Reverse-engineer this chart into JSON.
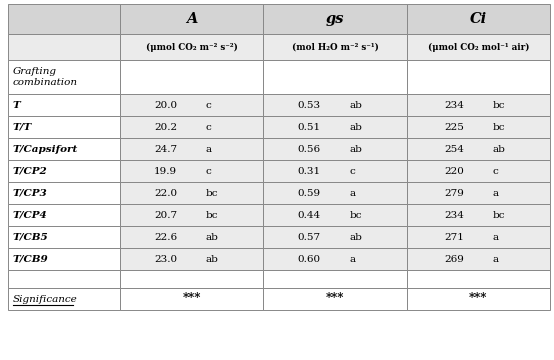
{
  "col_headers": [
    "A",
    "gs",
    "Ci"
  ],
  "col_units": [
    "(μmol CO₂ m⁻² s⁻²)",
    "(mol H₂O m⁻² s⁻¹)",
    "(μmol CO₂ mol⁻¹ air)"
  ],
  "row_label_header": "Grafting\ncombination",
  "rows": [
    {
      "label": "T",
      "A": "20.0",
      "A_sig": "c",
      "gs": "0.53",
      "gs_sig": "ab",
      "Ci": "234",
      "Ci_sig": "bc"
    },
    {
      "label": "T/T",
      "A": "20.2",
      "A_sig": "c",
      "gs": "0.51",
      "gs_sig": "ab",
      "Ci": "225",
      "Ci_sig": "bc"
    },
    {
      "label": "T/Capsifort",
      "A": "24.7",
      "A_sig": "a",
      "gs": "0.56",
      "gs_sig": "ab",
      "Ci": "254",
      "Ci_sig": "ab"
    },
    {
      "label": "T/CP2",
      "A": "19.9",
      "A_sig": "c",
      "gs": "0.31",
      "gs_sig": "c",
      "Ci": "220",
      "Ci_sig": "c"
    },
    {
      "label": "T/CP3",
      "A": "22.0",
      "A_sig": "bc",
      "gs": "0.59",
      "gs_sig": "a",
      "Ci": "279",
      "Ci_sig": "a"
    },
    {
      "label": "T/CP4",
      "A": "20.7",
      "A_sig": "bc",
      "gs": "0.44",
      "gs_sig": "bc",
      "Ci": "234",
      "Ci_sig": "bc"
    },
    {
      "label": "T/CB5",
      "A": "22.6",
      "A_sig": "ab",
      "gs": "0.57",
      "gs_sig": "ab",
      "Ci": "271",
      "Ci_sig": "a"
    },
    {
      "label": "T/CB9",
      "A": "23.0",
      "A_sig": "ab",
      "gs": "0.60",
      "gs_sig": "a",
      "Ci": "269",
      "Ci_sig": "a"
    }
  ],
  "significance": [
    "***",
    "***",
    "***"
  ],
  "bg_header": "#d4d4d4",
  "bg_unit": "#ebebeb",
  "bg_grafting": "#ffffff",
  "bg_data": "#ebebeb",
  "bg_white": "#ffffff",
  "border_color": "#888888",
  "border_lw": 0.7
}
